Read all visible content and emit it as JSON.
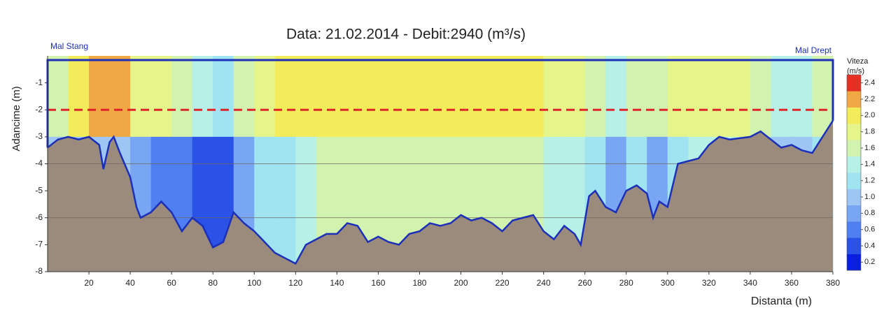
{
  "chart_data": {
    "type": "section",
    "title": "Data: 21.02.2014 - Debit:2940 (m³/s)",
    "left_bank": "Mal Stang",
    "right_bank": "Mal Drept",
    "xlabel": "Distanta (m)",
    "ylabel": "Adancime (m)",
    "xlim": [
      0,
      380
    ],
    "ylim": [
      -8,
      0
    ],
    "xticks": [
      20,
      40,
      60,
      80,
      100,
      120,
      140,
      160,
      180,
      200,
      220,
      240,
      260,
      280,
      300,
      320,
      340,
      360,
      380
    ],
    "yticks": [
      -1,
      -2,
      -3,
      -4,
      -5,
      -6,
      -7,
      -8
    ],
    "grid_lines": [
      -4,
      -6
    ],
    "reference_depth": -2,
    "x_bins": [
      0,
      10,
      20,
      30,
      40,
      50,
      60,
      70,
      80,
      90,
      100,
      110,
      120,
      130,
      140,
      150,
      160,
      170,
      180,
      190,
      200,
      210,
      220,
      230,
      240,
      250,
      260,
      270,
      280,
      290,
      300,
      310,
      320,
      330,
      340,
      350,
      360,
      370,
      380
    ],
    "depth_bins": [
      0,
      -3,
      -8
    ],
    "velocity": [
      [
        1.6,
        2.0,
        2.2,
        2.2,
        1.8,
        1.8,
        1.6,
        1.4,
        1.2,
        1.6,
        1.8,
        1.9,
        1.9,
        1.9,
        1.9,
        2.0,
        2.0,
        2.0,
        1.9,
        1.9,
        1.9,
        1.9,
        1.9,
        1.9,
        1.8,
        1.8,
        1.6,
        1.4,
        1.6,
        1.5,
        1.7,
        1.8,
        1.8,
        1.7,
        1.6,
        1.4,
        1.4,
        1.5
      ],
      [
        1.0,
        1.0,
        1.0,
        1.0,
        0.8,
        0.6,
        0.6,
        0.4,
        0.4,
        0.8,
        1.2,
        1.2,
        1.4,
        1.6,
        1.6,
        1.6,
        1.6,
        1.6,
        1.6,
        1.6,
        1.6,
        1.6,
        1.6,
        1.6,
        1.4,
        1.4,
        1.2,
        0.8,
        1.2,
        0.8,
        1.2,
        1.4,
        1.4,
        1.4,
        1.2,
        1.0,
        1.0,
        1.2
      ]
    ],
    "bed": {
      "x": [
        0,
        5,
        10,
        15,
        20,
        25,
        27,
        30,
        32,
        35,
        40,
        43,
        45,
        50,
        55,
        60,
        65,
        70,
        75,
        80,
        85,
        90,
        95,
        100,
        105,
        110,
        115,
        120,
        125,
        130,
        135,
        140,
        145,
        150,
        155,
        160,
        165,
        170,
        175,
        180,
        185,
        190,
        195,
        200,
        205,
        210,
        215,
        220,
        225,
        230,
        235,
        240,
        245,
        250,
        255,
        258,
        262,
        265,
        270,
        275,
        280,
        285,
        290,
        293,
        296,
        300,
        305,
        310,
        315,
        320,
        325,
        330,
        340,
        345,
        350,
        355,
        360,
        365,
        370,
        375,
        380
      ],
      "y": [
        -3.4,
        -3.1,
        -3.0,
        -3.1,
        -3.0,
        -3.3,
        -4.2,
        -3.2,
        -3.0,
        -3.6,
        -4.5,
        -5.6,
        -6.0,
        -5.8,
        -5.4,
        -5.8,
        -6.5,
        -6.0,
        -6.3,
        -7.1,
        -6.9,
        -5.8,
        -6.2,
        -6.5,
        -6.9,
        -7.3,
        -7.5,
        -7.7,
        -7.0,
        -6.8,
        -6.6,
        -6.6,
        -6.2,
        -6.3,
        -6.9,
        -6.7,
        -6.9,
        -7.0,
        -6.6,
        -6.5,
        -6.2,
        -6.3,
        -6.2,
        -5.9,
        -6.1,
        -6.0,
        -6.2,
        -6.5,
        -6.1,
        -6.0,
        -5.9,
        -6.5,
        -6.8,
        -6.3,
        -6.6,
        -7.0,
        -5.2,
        -5.0,
        -5.6,
        -5.8,
        -5.0,
        -4.8,
        -5.1,
        -6.0,
        -5.4,
        -5.6,
        -4.0,
        -3.9,
        -3.8,
        -3.3,
        -3.0,
        -3.1,
        -3.0,
        -2.8,
        -3.1,
        -3.4,
        -3.3,
        -3.5,
        -3.6,
        -3.0,
        -2.4
      ],
      "color": "#1c2fb8",
      "fill": "#9b8b7d"
    },
    "colorbar": {
      "title": "Viteza",
      "unit": "(m/s)",
      "clim": [
        0.1,
        2.5
      ],
      "ticks": [
        0.2,
        0.4,
        0.6,
        0.8,
        {
          "value": 1.0,
          "label": "1.0"
        },
        1.2,
        1.4,
        1.6,
        1.8,
        {
          "value": 2.0,
          "label": "2.0"
        },
        2.2,
        2.4
      ],
      "colors": [
        "#0a1ee0",
        "#2a52e6",
        "#4f7ff0",
        "#79a6f2",
        "#9dc6f4",
        "#9fe4f0",
        "#b6f0e6",
        "#d2f2b0",
        "#e6f58a",
        "#f2ec5a",
        "#f0a845",
        "#e63026"
      ]
    }
  }
}
